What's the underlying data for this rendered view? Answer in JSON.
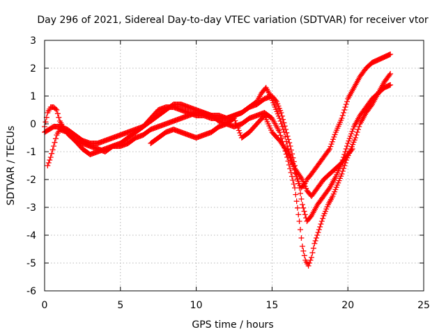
{
  "chart_data": {
    "type": "scatter",
    "title": "Day 296 of 2021, Sidereal Day-to-day VTEC variation (SDTVAR) for receiver vtor",
    "xlabel": "GPS time / hours",
    "ylabel": "SDTVAR / TECUs",
    "xlim": [
      0,
      25
    ],
    "ylim": [
      -6,
      3
    ],
    "xticks": [
      "0",
      "5",
      "10",
      "15",
      "20",
      "25"
    ],
    "yticks": [
      "-6",
      "-5",
      "-4",
      "-3",
      "-2",
      "-1",
      "0",
      "1",
      "2",
      "3"
    ],
    "grid": true,
    "legend": "none",
    "marker": "plus",
    "color": "#ff0000",
    "series": [
      {
        "x": [
          0.0,
          0.2,
          0.4,
          0.6,
          0.8,
          1.0,
          1.3,
          1.6,
          2.0,
          2.5,
          3.0,
          3.5,
          4.0,
          4.5,
          5.0,
          5.5,
          6.0,
          6.5,
          7.0,
          7.5,
          8.0,
          8.5,
          9.0,
          9.5,
          10.0,
          10.5,
          11.0,
          11.5,
          12.0,
          12.5,
          13.0,
          13.5,
          14.0,
          14.3,
          14.6,
          14.9,
          15.2,
          15.5,
          15.8,
          16.0,
          16.3,
          16.6,
          16.9,
          17.1,
          17.3,
          17.6,
          18.0,
          18.4,
          18.8,
          19.2,
          19.6,
          20.0,
          20.4,
          20.8,
          21.2,
          21.6,
          22.0,
          22.4,
          22.8
        ],
        "y": [
          -0.1,
          0.4,
          0.6,
          0.6,
          0.5,
          0.1,
          -0.2,
          -0.4,
          -0.6,
          -0.7,
          -0.8,
          -0.9,
          -1.0,
          -0.8,
          -0.7,
          -0.5,
          -0.3,
          -0.1,
          0.2,
          0.5,
          0.6,
          0.6,
          0.5,
          0.4,
          0.3,
          0.3,
          0.2,
          0.2,
          0.2,
          0.3,
          0.4,
          0.6,
          0.8,
          1.1,
          1.3,
          1.0,
          0.6,
          0.2,
          -0.3,
          -0.8,
          -1.3,
          -1.9,
          -2.3,
          -2.2,
          -2.0,
          -1.8,
          -1.5,
          -1.2,
          -0.9,
          -0.3,
          0.2,
          0.9,
          1.3,
          1.7,
          2.0,
          2.2,
          2.3,
          2.4,
          2.5
        ]
      },
      {
        "x": [
          0.0,
          0.3,
          0.6,
          1.0,
          1.5,
          2.0,
          2.5,
          3.0,
          3.5,
          4.0,
          4.5,
          5.0,
          5.5,
          6.0,
          6.5,
          7.0,
          7.5,
          8.0,
          8.5,
          9.0,
          9.5,
          10.0,
          10.5,
          11.0,
          11.5,
          12.0,
          12.5,
          13.0,
          13.5,
          14.0,
          14.5,
          15.0,
          15.3,
          15.6,
          15.9,
          16.2,
          16.5,
          16.8,
          17.0,
          17.3,
          17.6,
          18.0,
          18.4,
          18.8,
          19.2,
          19.6,
          20.0,
          20.4,
          20.8,
          21.2,
          21.6,
          22.0,
          22.4,
          22.8
        ],
        "y": [
          -0.3,
          -0.2,
          -0.1,
          -0.1,
          -0.2,
          -0.4,
          -0.6,
          -0.7,
          -0.7,
          -0.6,
          -0.5,
          -0.4,
          -0.3,
          -0.2,
          -0.1,
          0.1,
          0.3,
          0.5,
          0.7,
          0.7,
          0.6,
          0.5,
          0.4,
          0.3,
          0.3,
          0.2,
          0.3,
          0.4,
          0.6,
          0.7,
          0.9,
          1.0,
          0.8,
          0.4,
          -0.2,
          -0.8,
          -1.5,
          -2.3,
          -2.9,
          -3.5,
          -3.3,
          -2.9,
          -2.6,
          -2.3,
          -1.9,
          -1.4,
          -0.7,
          -0.1,
          0.3,
          0.6,
          0.9,
          1.1,
          1.3,
          1.4
        ]
      },
      {
        "x": [
          0.2,
          0.4,
          0.6,
          0.8,
          1.0,
          1.5,
          2.0,
          2.5,
          3.0,
          3.5,
          4.0,
          4.5,
          5.0,
          5.5,
          6.0,
          6.5,
          7.0,
          7.5,
          8.0,
          8.5,
          9.0,
          9.5,
          10.0,
          10.5,
          11.0,
          11.5,
          12.0,
          12.5,
          13.0,
          13.5,
          14.0,
          14.5,
          15.0,
          15.5,
          16.0,
          16.5,
          16.8,
          17.0,
          17.2,
          17.4,
          17.6,
          17.8,
          18.1,
          18.4,
          18.7,
          19.0,
          19.3,
          19.6,
          19.9,
          20.2,
          20.5,
          20.8,
          21.2,
          21.6,
          22.0,
          22.4,
          22.8
        ],
        "y": [
          -1.5,
          -1.2,
          -0.8,
          -0.4,
          -0.2,
          -0.3,
          -0.6,
          -0.9,
          -1.1,
          -1.0,
          -0.9,
          -0.8,
          -0.8,
          -0.7,
          -0.5,
          -0.4,
          -0.2,
          -0.1,
          0.0,
          0.1,
          0.2,
          0.3,
          0.4,
          0.4,
          0.3,
          0.1,
          0.0,
          -0.1,
          0.0,
          0.2,
          0.3,
          0.4,
          0.2,
          -0.3,
          -1.2,
          -2.3,
          -3.5,
          -4.4,
          -4.9,
          -5.1,
          -4.8,
          -4.3,
          -3.8,
          -3.3,
          -2.9,
          -2.6,
          -2.2,
          -1.8,
          -1.3,
          -0.9,
          -0.5,
          0.0,
          0.4,
          0.7,
          1.1,
          1.5,
          1.8
        ]
      },
      {
        "x": [
          7.0,
          7.5,
          8.0,
          8.5,
          9.0,
          9.5,
          10.0,
          10.5,
          11.0,
          11.5,
          12.0,
          12.5,
          13.0,
          13.5,
          14.0,
          14.5,
          15.0,
          15.5,
          16.0,
          16.5,
          17.0,
          17.3,
          17.6,
          18.0,
          18.4,
          18.8,
          19.2,
          19.6,
          20.0,
          20.3
        ],
        "y": [
          -0.7,
          -0.5,
          -0.3,
          -0.2,
          -0.3,
          -0.4,
          -0.5,
          -0.4,
          -0.3,
          -0.1,
          0.0,
          0.2,
          -0.5,
          -0.3,
          0.0,
          0.3,
          -0.3,
          -0.6,
          -1.0,
          -1.6,
          -2.0,
          -2.4,
          -2.6,
          -2.3,
          -2.0,
          -1.8,
          -1.6,
          -1.4,
          -1.1,
          -0.9
        ]
      }
    ]
  }
}
